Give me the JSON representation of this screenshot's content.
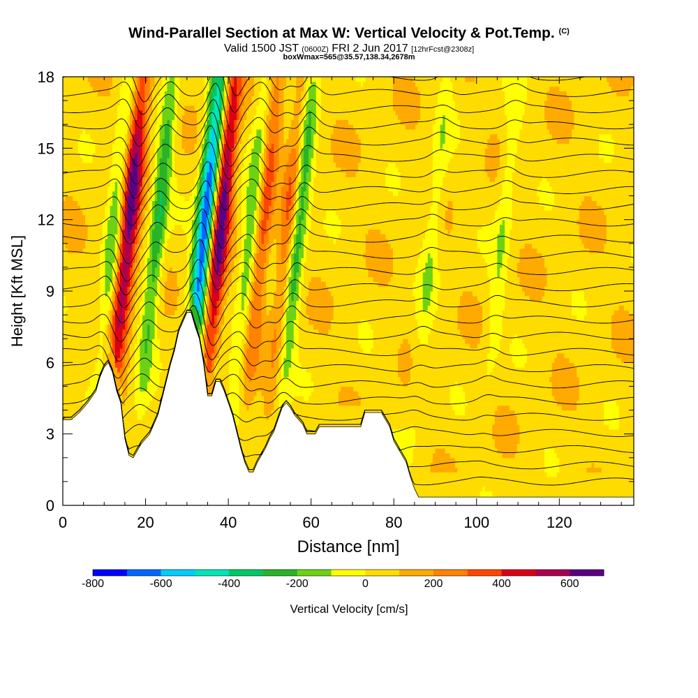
{
  "header": {
    "title_main": "Wind-Parallel Section at Max W: Vertical Velocity & Pot.Temp.",
    "title_copyright": "(C)",
    "valid_prefix": "Valid 1500 JST",
    "valid_utc": "(0600Z)",
    "valid_date": "FRI 2 Jun 2017",
    "forecast_tag": "[12hrFcst@2308z]",
    "boxwmax": "boxWmax=565@35.57,138.34,2678m"
  },
  "chart_data": {
    "type": "heatmap",
    "title": "Wind-Parallel Section at Max W: Vertical Velocity & Pot.Temp.",
    "xlabel": "Distance [nm]",
    "ylabel": "Height [Kft MSL]",
    "xlim": [
      0,
      138
    ],
    "ylim": [
      0,
      18
    ],
    "xticks": [
      "0",
      "20",
      "40",
      "60",
      "80",
      "100",
      "120"
    ],
    "yticks": [
      "0",
      "3",
      "6",
      "9",
      "12",
      "15",
      "18"
    ],
    "colorbar": {
      "title": "Vertical Velocity [cm/s]",
      "ticks": [
        "-800",
        "-600",
        "-400",
        "-200",
        "0",
        "200",
        "400",
        "600"
      ],
      "bounds": [
        -800,
        700
      ],
      "step": 100,
      "colors": [
        "#0000ff",
        "#0066ff",
        "#00ccff",
        "#00e6b8",
        "#00c864",
        "#28b428",
        "#6ed214",
        "#ffff00",
        "#ffdc00",
        "#ffaa00",
        "#ff8200",
        "#ff4600",
        "#dc0014",
        "#aa0050",
        "#5a0082"
      ]
    },
    "terrain_kft": [
      [
        0,
        3.6
      ],
      [
        2,
        3.6
      ],
      [
        4,
        3.9
      ],
      [
        6,
        4.3
      ],
      [
        8,
        4.8
      ],
      [
        9,
        5.4
      ],
      [
        10,
        5.8
      ],
      [
        11,
        6.0
      ],
      [
        12,
        5.6
      ],
      [
        13,
        4.8
      ],
      [
        14,
        4.3
      ],
      [
        15,
        2.8
      ],
      [
        16,
        2.1
      ],
      [
        17,
        2.0
      ],
      [
        18,
        2.3
      ],
      [
        19,
        2.6
      ],
      [
        20,
        2.8
      ],
      [
        21,
        3.0
      ],
      [
        22,
        3.4
      ],
      [
        23,
        3.8
      ],
      [
        24,
        4.5
      ],
      [
        25,
        5.2
      ],
      [
        26,
        5.9
      ],
      [
        27,
        6.5
      ],
      [
        28,
        7.3
      ],
      [
        29,
        7.7
      ],
      [
        30,
        8.1
      ],
      [
        31,
        8.1
      ],
      [
        32,
        7.5
      ],
      [
        33,
        7.0
      ],
      [
        34,
        6.0
      ],
      [
        35,
        4.6
      ],
      [
        36,
        4.6
      ],
      [
        37,
        5.2
      ],
      [
        38,
        5.2
      ],
      [
        39,
        4.8
      ],
      [
        40,
        4.3
      ],
      [
        41,
        3.8
      ],
      [
        42,
        3.1
      ],
      [
        43,
        2.4
      ],
      [
        44,
        1.8
      ],
      [
        45,
        1.4
      ],
      [
        46,
        1.4
      ],
      [
        47,
        1.8
      ],
      [
        48,
        2.1
      ],
      [
        49,
        2.4
      ],
      [
        50,
        2.8
      ],
      [
        51,
        3.1
      ],
      [
        52,
        3.6
      ],
      [
        53,
        4.1
      ],
      [
        54,
        4.3
      ],
      [
        55,
        4.1
      ],
      [
        56,
        3.8
      ],
      [
        57,
        3.6
      ],
      [
        58,
        3.4
      ],
      [
        59,
        3.0
      ],
      [
        60,
        3.0
      ],
      [
        61,
        3.0
      ],
      [
        62,
        3.3
      ],
      [
        63,
        3.3
      ],
      [
        66,
        3.3
      ],
      [
        69,
        3.3
      ],
      [
        72,
        3.3
      ],
      [
        73,
        3.9
      ],
      [
        75,
        3.9
      ],
      [
        77,
        3.9
      ],
      [
        78,
        3.6
      ],
      [
        79,
        3.3
      ],
      [
        80,
        2.7
      ],
      [
        81,
        2.4
      ],
      [
        82,
        2.1
      ],
      [
        83,
        1.8
      ],
      [
        84,
        1.2
      ],
      [
        85,
        0.7
      ],
      [
        86,
        0.35
      ],
      [
        100,
        0.35
      ],
      [
        120,
        0.35
      ],
      [
        138,
        0.35
      ]
    ],
    "w_updraft_cores": [
      {
        "x": 14.5,
        "peak_cm_s": 600
      },
      {
        "x": 36.5,
        "peak_cm_s": 650
      },
      {
        "x": 47,
        "peak_cm_s": 300
      },
      {
        "x": 53,
        "peak_cm_s": 250
      }
    ],
    "w_downdraft_cores": [
      {
        "x": 11,
        "peak_cm_s": -250
      },
      {
        "x": 21.5,
        "peak_cm_s": -350
      },
      {
        "x": 33,
        "peak_cm_s": -800
      },
      {
        "x": 44,
        "peak_cm_s": -250
      },
      {
        "x": 55.5,
        "peak_cm_s": -350
      },
      {
        "x": 88,
        "peak_cm_s": -150
      },
      {
        "x": 105,
        "peak_cm_s": -150
      }
    ]
  }
}
